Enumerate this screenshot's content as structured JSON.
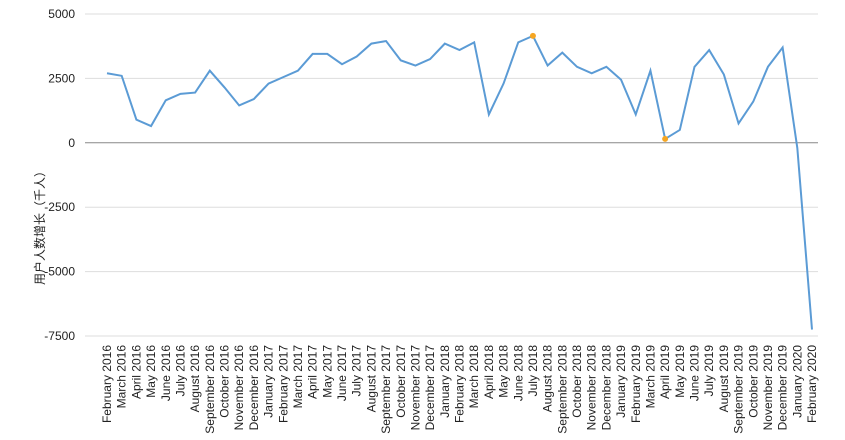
{
  "chart_data": {
    "type": "line",
    "ylabel": "用户人数增长（千人）",
    "categories": [
      "February 2016",
      "March 2016",
      "April 2016",
      "May 2016",
      "June 2016",
      "July 2016",
      "August 2016",
      "September 2016",
      "October 2016",
      "November 2016",
      "December 2016",
      "January 2017",
      "February 2017",
      "March 2017",
      "April 2017",
      "May 2017",
      "June 2017",
      "July 2017",
      "August 2017",
      "September 2017",
      "October 2017",
      "November 2017",
      "December 2017",
      "January 2018",
      "February 2018",
      "March 2018",
      "April 2018",
      "May 2018",
      "June 2018",
      "July 2018",
      "August 2018",
      "September 2018",
      "October 2018",
      "November 2018",
      "December 2018",
      "January 2019",
      "February 2019",
      "March 2019",
      "April 2019",
      "May 2019",
      "June 2019",
      "July 2019",
      "August 2019",
      "September 2019",
      "October 2019",
      "November 2019",
      "December 2019",
      "January 2020",
      "February 2020"
    ],
    "values": [
      2700,
      2600,
      900,
      650,
      1650,
      1900,
      1950,
      2800,
      2150,
      1450,
      1700,
      2300,
      2550,
      2800,
      3450,
      3450,
      3050,
      3350,
      3850,
      3950,
      3200,
      3000,
      3250,
      3850,
      3600,
      3900,
      1100,
      2300,
      3900,
      4150,
      3000,
      3500,
      2950,
      2700,
      2950,
      2450,
      1100,
      2800,
      150,
      500,
      2950,
      3600,
      2650,
      750,
      1600,
      2950,
      3700,
      -200,
      -7250
    ],
    "color": "#5b9bd5",
    "highlight_indices": [
      29,
      38
    ],
    "highlight_color": "#f5a623",
    "ylim": [
      -7500,
      5000
    ],
    "yticks": [
      5000,
      2500,
      0,
      -2500,
      -5000,
      -7500
    ],
    "grid": true
  }
}
